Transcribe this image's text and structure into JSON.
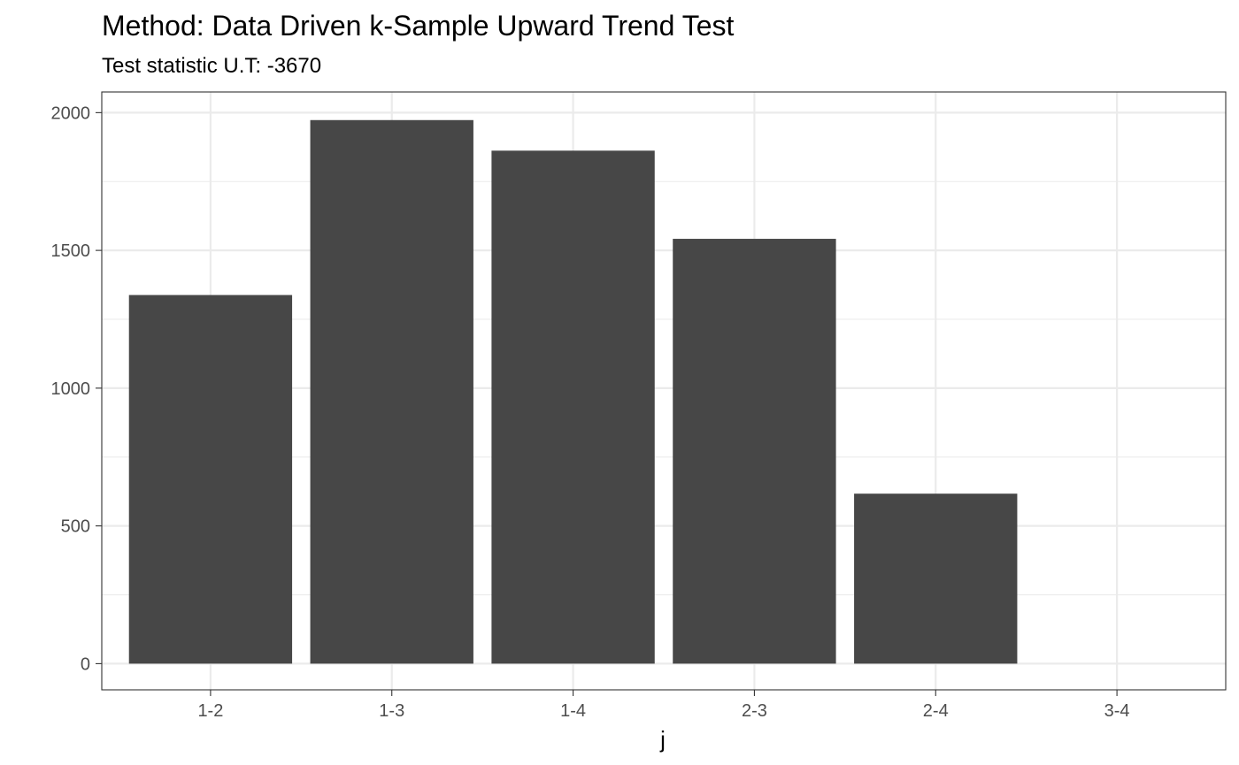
{
  "chart_data": {
    "type": "bar",
    "title": "Method: Data Driven k-Sample Upward Trend Test",
    "subtitle": "Test statistic U.T: -3670",
    "xlabel": "j",
    "ylabel": "",
    "categories": [
      "1-2",
      "1-3",
      "1-4",
      "2-3",
      "2-4",
      "3-4"
    ],
    "values": [
      1338,
      1973,
      1862,
      1542,
      617,
      0
    ],
    "ylim": [
      -95,
      2075
    ],
    "yticks": [
      0,
      500,
      1000,
      1500,
      2000
    ],
    "ytick_labels": [
      "0",
      "500",
      "1000",
      "1500",
      "2000"
    ],
    "grid": true,
    "bar_color": "#474747"
  }
}
